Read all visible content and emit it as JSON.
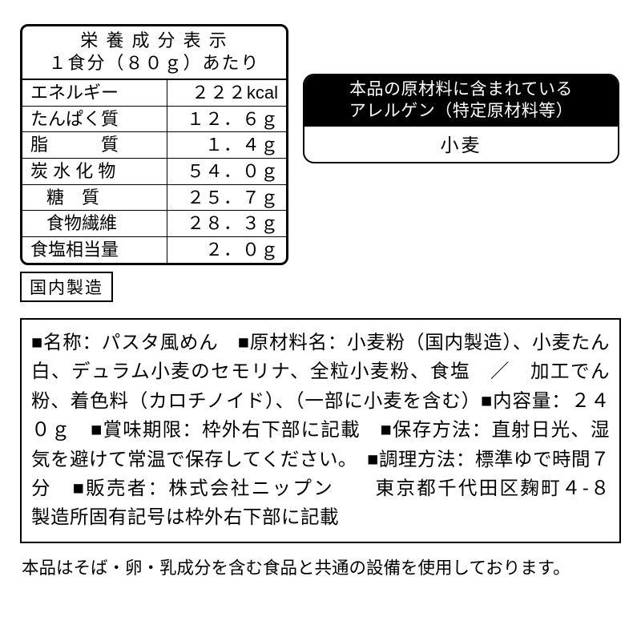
{
  "nutrition": {
    "title_line1": "栄 養 成 分 表 示",
    "title_line2": "１食分（８０ｇ）あたり",
    "rows": [
      {
        "label": "エネルギー",
        "value": "２２２",
        "unit": "kcal",
        "indent": false
      },
      {
        "label": "たんぱく質",
        "value": "１２．６",
        "unit": "ｇ",
        "indent": false
      },
      {
        "label": "脂　　　質",
        "value": "１．４",
        "unit": "ｇ",
        "indent": false
      },
      {
        "label": "炭 水 化 物",
        "value": "５４．０",
        "unit": "ｇ",
        "indent": false
      },
      {
        "label": "糖　質",
        "value": "２５．７",
        "unit": "ｇ",
        "indent": true
      },
      {
        "label": "食物繊維",
        "value": "２８．３",
        "unit": "ｇ",
        "indent": true
      },
      {
        "label": "食塩相当量",
        "value": "２．０",
        "unit": "ｇ",
        "indent": false
      }
    ]
  },
  "origin": "国内製造",
  "allergen": {
    "header_line1": "本品の原材料に含まれている",
    "header_line2": "アレルゲン（特定原材料等）",
    "body": "小麦"
  },
  "ingredients_text": "■名称：パスタ風めん　■原材料名：小麦粉（国内製造）、小麦たん白、デュラム小麦のセモリナ、全粒小麦粉、食塩　／　加工でん粉、着色料（カロチノイド）、（一部に小麦を含む）■内容量：２４０ｇ　■賞味期限：枠外右下部に記載　■保存方法：直射日光、湿気を避けて常温で保存してください。　■調理方法：標準ゆで時間７分　■販売者：株式会社ニップン　　東京都千代田区麹町４-８　　製造所固有記号は枠外右下部に記載",
  "footnote": "本品はそば・卵・乳成分を含む食品と共通の設備を使用しております。",
  "colors": {
    "fg": "#000000",
    "bg": "#ffffff"
  }
}
